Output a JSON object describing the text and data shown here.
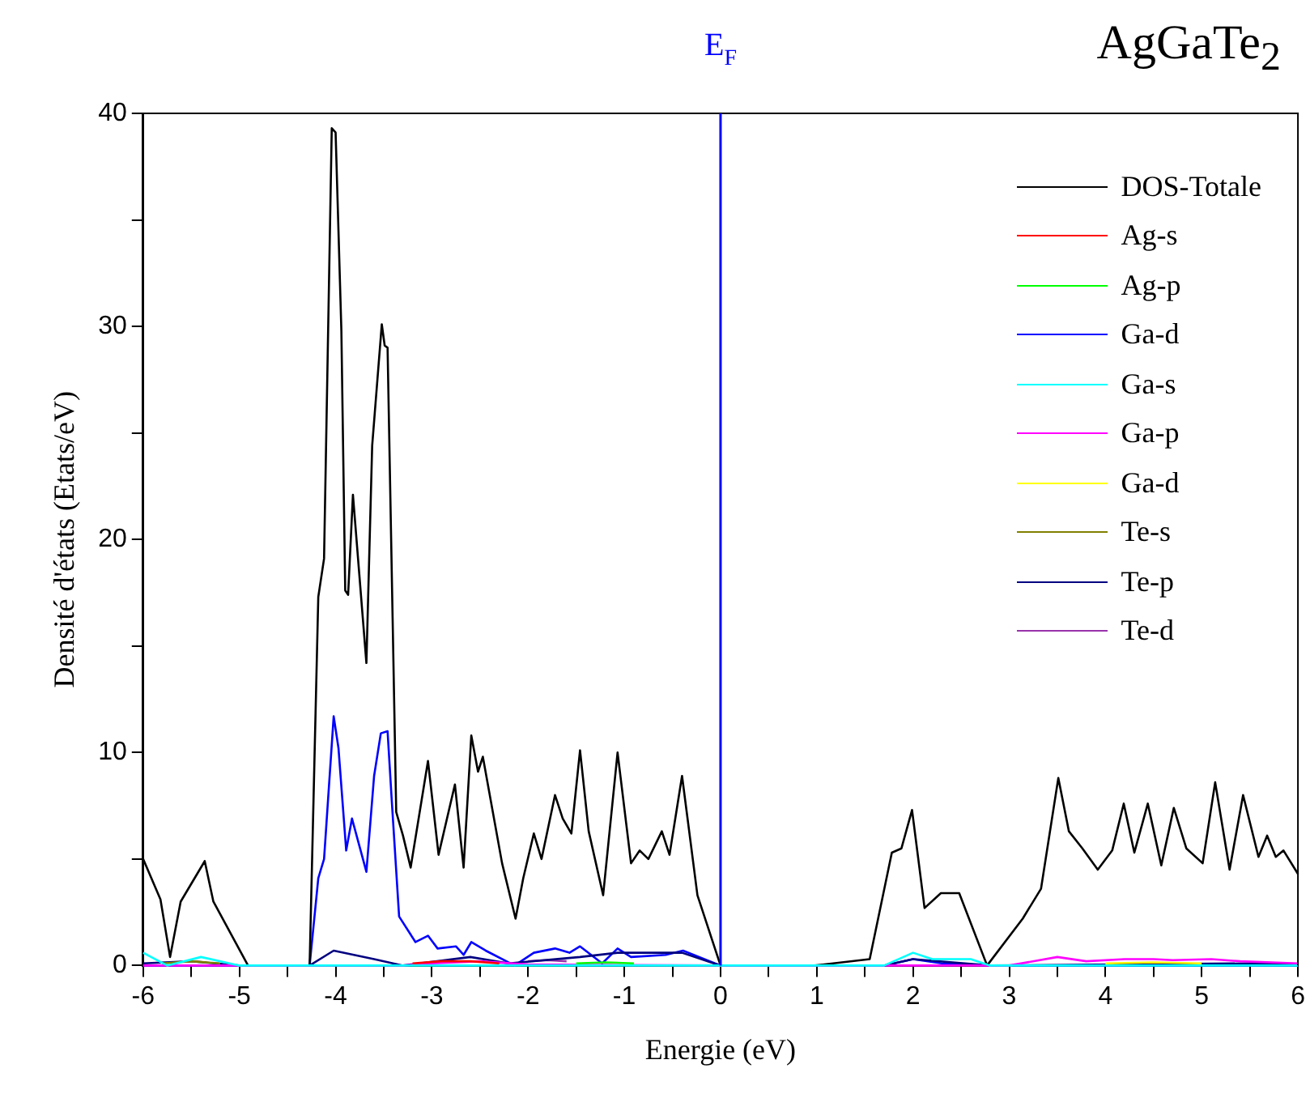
{
  "chart_data": {
    "type": "line",
    "title": "AgGaTe$_{2}$",
    "xlabel": "Energie (eV)",
    "ylabel": "Densité d'états (Etats/eV)",
    "xlim": [
      -6,
      6
    ],
    "ylim": [
      0,
      40
    ],
    "xticks": [
      -6,
      {
        "value": -5.5,
        "label": null
      },
      -5,
      {
        "value": -4.5,
        "label": null
      },
      -4,
      {
        "value": -3.5,
        "label": null
      },
      -3,
      {
        "value": -2.5,
        "label": null
      },
      -2,
      {
        "value": -1.5,
        "label": null
      },
      -1,
      {
        "value": -0.5,
        "label": null
      },
      0,
      {
        "value": 0.5,
        "label": null
      },
      1,
      {
        "value": 1.5,
        "label": null
      },
      2,
      {
        "value": 2.5,
        "label": null
      },
      3,
      {
        "value": 3.5,
        "label": null
      },
      4,
      {
        "value": 4.5,
        "label": null
      },
      5,
      {
        "value": 5.5,
        "label": null
      },
      6
    ],
    "yticks": [
      0,
      {
        "value": 5,
        "label": null
      },
      10,
      {
        "value": 15,
        "label": null
      },
      20,
      {
        "value": 25,
        "label": null
      },
      30,
      {
        "value": 35,
        "label": null
      },
      40
    ],
    "grid": false,
    "legend": "top right",
    "marker": "none",
    "line_style": "solid",
    "ref_lines": [
      {
        "axis": "x",
        "value": 0,
        "label": "E$_{F}$",
        "color": "#0000ff"
      }
    ],
    "series": [
      {
        "name": "DOS-Totale",
        "color": "#000000",
        "x": [
          -6,
          -5.82,
          -5.72,
          -5.61,
          -5.36,
          -5.27,
          -4.91,
          -4.27,
          -4.18,
          -4.12,
          -4.04,
          -4.0,
          -3.94,
          -3.9,
          -3.87,
          -3.82,
          -3.68,
          -3.62,
          -3.52,
          -3.49,
          -3.46,
          -3.37,
          -3.3,
          -3.22,
          -3.04,
          -2.93,
          -2.76,
          -2.67,
          -2.59,
          -2.52,
          -2.47,
          -2.27,
          -2.13,
          -2.05,
          -1.94,
          -1.86,
          -1.72,
          -1.64,
          -1.55,
          -1.46,
          -1.37,
          -1.22,
          -1.07,
          -0.93,
          -0.84,
          -0.75,
          -0.61,
          -0.53,
          -0.4,
          -0.24,
          0,
          0.98,
          1.55,
          1.78,
          1.88,
          1.99,
          2.12,
          2.29,
          2.48,
          2.77,
          3.14,
          3.33,
          3.51,
          3.62,
          3.76,
          3.92,
          4.07,
          4.19,
          4.3,
          4.44,
          4.58,
          4.71,
          4.84,
          5.01,
          5.14,
          5.29,
          5.43,
          5.59,
          5.68,
          5.77,
          5.85,
          6
        ],
        "values": [
          5.0,
          3.1,
          0.4,
          3.0,
          4.9,
          3.0,
          0,
          0,
          17.3,
          19.1,
          39.3,
          39.1,
          29.8,
          17.6,
          17.4,
          22.1,
          14.2,
          24.4,
          30.1,
          29.1,
          29.0,
          7.2,
          6.1,
          4.6,
          9.6,
          5.2,
          8.5,
          4.6,
          10.8,
          9.1,
          9.8,
          4.8,
          2.2,
          4.1,
          6.2,
          5.0,
          8.0,
          6.9,
          6.2,
          10.1,
          6.3,
          3.3,
          10.0,
          4.8,
          5.4,
          5.0,
          6.3,
          5.2,
          8.9,
          3.3,
          0,
          0,
          0.3,
          5.3,
          5.5,
          7.3,
          2.7,
          3.4,
          3.4,
          0,
          2.2,
          3.6,
          8.8,
          6.3,
          5.5,
          4.5,
          5.4,
          7.6,
          5.3,
          7.6,
          4.7,
          7.4,
          5.5,
          4.8,
          8.6,
          4.5,
          8.0,
          5.1,
          6.1,
          5.1,
          5.4,
          4.3
        ]
      },
      {
        "name": "Ag-s",
        "color": "#ff0000",
        "x": [
          -3.2,
          -2.9,
          -2.6,
          -2.3
        ],
        "values": [
          0.1,
          0.2,
          0.2,
          0.1
        ]
      },
      {
        "name": "Ag-p",
        "color": "#00ff00",
        "x": [
          -1.5,
          -1.2,
          -0.9
        ],
        "values": [
          0.1,
          0.15,
          0.1
        ]
      },
      {
        "name": "Ga-d",
        "color": "#0000ff",
        "x": [
          -6,
          -4.27,
          -4.18,
          -4.12,
          -4.02,
          -3.97,
          -3.89,
          -3.83,
          -3.68,
          -3.6,
          -3.53,
          -3.46,
          -3.42,
          -3.34,
          -3.17,
          -3.04,
          -2.94,
          -2.75,
          -2.67,
          -2.59,
          -2.44,
          -2.14,
          -1.94,
          -1.72,
          -1.57,
          -1.46,
          -1.23,
          -1.07,
          -0.93,
          -0.57,
          -0.39,
          0,
          1.7,
          2.0,
          2.3,
          2.8,
          6
        ],
        "values": [
          0,
          0,
          4.1,
          5.0,
          11.7,
          10.2,
          5.4,
          6.9,
          4.4,
          8.9,
          10.9,
          11.0,
          8.0,
          2.3,
          1.1,
          1.4,
          0.8,
          0.9,
          0.5,
          1.1,
          0.7,
          0,
          0.6,
          0.8,
          0.6,
          0.9,
          0.1,
          0.8,
          0.4,
          0.5,
          0.7,
          0,
          0,
          0.3,
          0.1,
          0,
          0
        ]
      },
      {
        "name": "Ga-s",
        "color": "#00ffff",
        "x": [
          -6,
          -5.75,
          -5.4,
          -5,
          0,
          1.7,
          2.0,
          2.2,
          2.6,
          2.8,
          6
        ],
        "values": [
          0.6,
          0,
          0.4,
          0,
          0,
          0,
          0.6,
          0.3,
          0.3,
          0,
          0
        ]
      },
      {
        "name": "Ga-p",
        "color": "#ff00ff",
        "x": [
          -6,
          -3.3,
          -3,
          -2.5,
          -2,
          0,
          3,
          3.5,
          3.8,
          4.2,
          4.5,
          4.7,
          5.1,
          5.4,
          6
        ],
        "values": [
          0,
          0,
          0.1,
          0.2,
          0.05,
          0,
          0,
          0.4,
          0.2,
          0.3,
          0.3,
          0.25,
          0.3,
          0.2,
          0.1
        ]
      },
      {
        "name": "Ga-d",
        "color": "#ffff00",
        "x": [
          4.0,
          4.5,
          5.0
        ],
        "values": [
          0.1,
          0.15,
          0.1
        ]
      },
      {
        "name": "Te-s",
        "color": "#808000",
        "x": [
          -5.8,
          -5.5,
          -5.2
        ],
        "values": [
          0.1,
          0.2,
          0.1
        ]
      },
      {
        "name": "Te-p",
        "color": "#000080",
        "x": [
          -6,
          -5.5,
          -5,
          -4.27,
          -4.02,
          -3.6,
          -3.3,
          -2.6,
          -2.2,
          -1.46,
          -1.07,
          -0.4,
          0,
          1.7,
          2.0,
          2.8,
          5.5,
          6
        ],
        "values": [
          0.1,
          0.2,
          0,
          0,
          0.7,
          0.3,
          0,
          0.4,
          0.1,
          0.4,
          0.6,
          0.6,
          0,
          0,
          0.3,
          0,
          0.1,
          0.05
        ]
      },
      {
        "name": "Te-d",
        "color": "#9933aa",
        "x": [
          -2.0,
          -1.8,
          -1.6
        ],
        "values": [
          0.2,
          0.25,
          0.2
        ]
      }
    ]
  }
}
